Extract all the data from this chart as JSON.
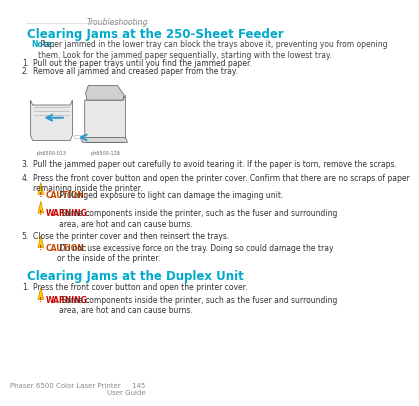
{
  "bg_color": "#ffffff",
  "header_text": "Troubleshooting",
  "header_color": "#888888",
  "header_fontsize": 5.5,
  "section1_title": "Clearing Jams at the 250-Sheet Feeder",
  "section1_title_color": "#00aacc",
  "section1_title_fontsize": 8.5,
  "note_label": "Note:",
  "note_label_color": "#00aacc",
  "note_text": " Paper jammed in the lower tray can block the trays above it, preventing you from opening\nthem. Look for the jammed paper sequentially, starting with the lowest tray.",
  "note_fontsize": 5.5,
  "steps_250": [
    "Pull out the paper trays until you find the jammed paper.",
    "Remove all jammed and creased paper from the tray."
  ],
  "steps_250_fontsize": 5.5,
  "steps_250_after_image": [
    "Pull the jammed paper out carefully to avoid tearing it. If the paper is torn, remove the scraps.",
    "Press the front cover button and open the printer cover. Confirm that there are no scraps of paper\nremaining inside the printer."
  ],
  "caution_label": "CAUTION:",
  "caution_label_color": "#cc4400",
  "caution1_text": " Prolonged exposure to light can damage the imaging unit.",
  "warning_label": "WARNING:",
  "warning_label_color": "#cc0000",
  "warning1_text": " Some components inside the printer, such as the fuser and surrounding\narea, are hot and can cause burns.",
  "step5_text": "Close the printer cover and then reinsert the trays.",
  "caution2_text": " Do not use excessive force on the tray. Doing so could damage the tray\nor the inside of the printer.",
  "section2_title": "Clearing Jams at the Duplex Unit",
  "section2_title_color": "#00aacc",
  "section2_title_fontsize": 8.5,
  "duplex_step1": "Press the front cover button and open the printer cover.",
  "warning2_text": " Some components inside the printer, such as the fuser and surrounding\narea, are hot and can cause burns.",
  "footer_text": "Phaser 6500 Color Laser Printer     145\nUser Guide",
  "footer_color": "#888888",
  "footer_fontsize": 5.0,
  "body_fontsize": 5.5,
  "small_fontsize": 5.0
}
